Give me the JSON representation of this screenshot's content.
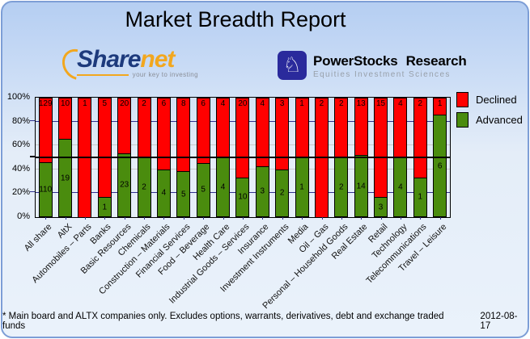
{
  "title": "Market Breadth Report",
  "logos": {
    "sharenet": {
      "name_part1": "Share",
      "name_part2": "net",
      "tagline": "your key to investing",
      "navy": "#1d3a7c",
      "orange": "#f2a71e"
    },
    "powerstocks": {
      "name_word1": "PowerStocks",
      "name_word2": "Research",
      "tagline": "Equities Investment Sciences",
      "icon": "knight-chess-icon",
      "knight_glyph": "♘",
      "square_color": "#2a2a9c"
    }
  },
  "chart_data": {
    "type": "bar",
    "stacked": true,
    "value_mode": "segments scaled to percent of category total; counts shown as data labels",
    "categories": [
      "All share",
      "AltX",
      "Automobiles – Parts",
      "Banks",
      "Basic Resources",
      "Chemicals",
      "Construction – Materials",
      "Financial Services",
      "Food – Beverage",
      "Health Care",
      "Industrial Goods – Services",
      "Insurance",
      "Investment Instruments",
      "Media",
      "Oil – Gas",
      "Personal – Household Goods",
      "Real Estate",
      "Retail",
      "Technology",
      "Telecommunications",
      "Travel – Leisure"
    ],
    "series": [
      {
        "name": "Declined",
        "color": "#ff0000",
        "values": [
          129,
          10,
          1,
          5,
          20,
          2,
          6,
          8,
          6,
          4,
          20,
          4,
          3,
          1,
          2,
          2,
          13,
          15,
          4,
          2,
          1
        ]
      },
      {
        "name": "Advanced",
        "color": "#4a8c0e",
        "values": [
          110,
          19,
          0,
          1,
          23,
          2,
          4,
          5,
          5,
          4,
          10,
          3,
          2,
          1,
          0,
          2,
          14,
          3,
          4,
          1,
          6
        ]
      }
    ],
    "ylim": [
      0,
      100
    ],
    "yticks": [
      100,
      80,
      60,
      40,
      20,
      0
    ],
    "ytick_suffix": "%",
    "gridlines": [
      {
        "pct": 80,
        "style": "navy"
      },
      {
        "pct": 60,
        "style": "gray"
      },
      {
        "pct": 50,
        "style": "black"
      },
      {
        "pct": 40,
        "style": "gray"
      },
      {
        "pct": 20,
        "style": "navy"
      }
    ],
    "legend_position": "top-right"
  },
  "colors": {
    "declined": "#ff0000",
    "advanced": "#4a8c0e",
    "grid_navy": "#30308e",
    "grid_gray": "#c9c9c9",
    "midline": "#000000",
    "panel_border": "#7d9ed6"
  },
  "footer": {
    "note": "* Main board and ALTX companies only. Excludes options, warrants, derivatives, debt and exchange traded funds",
    "date": "2012-08-17"
  }
}
